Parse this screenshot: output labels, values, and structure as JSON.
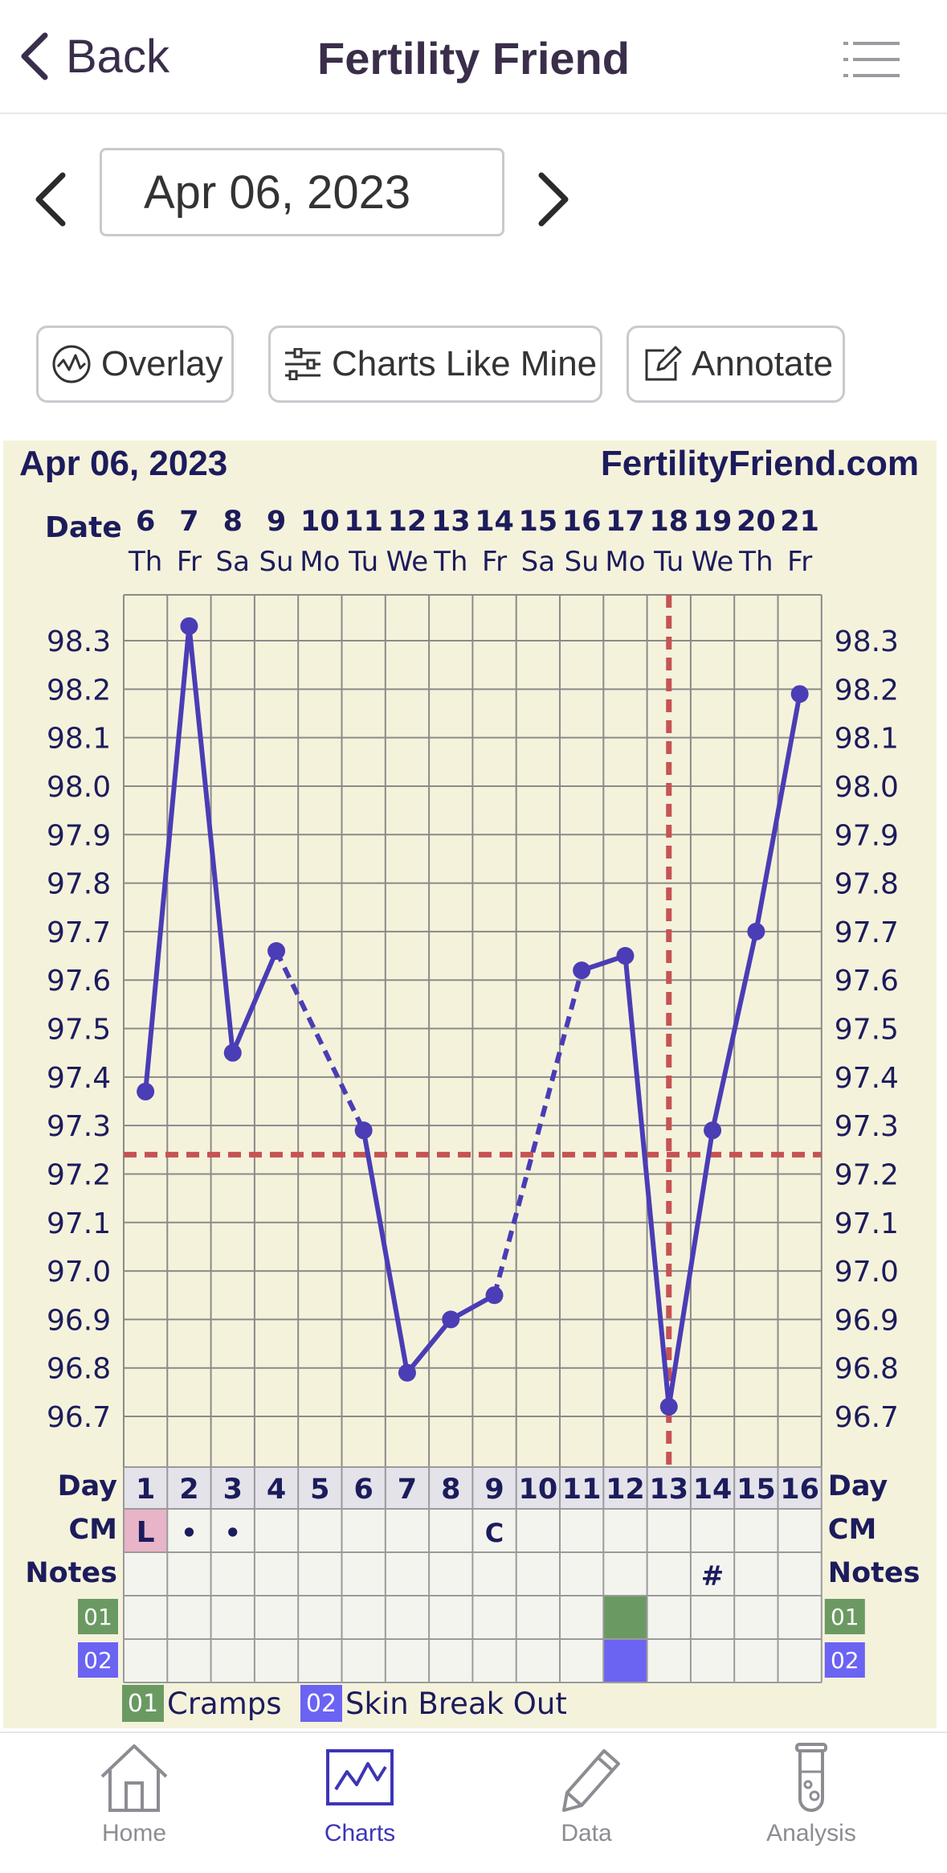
{
  "header": {
    "back_label": "Back",
    "title": "Fertility Friend"
  },
  "date_nav": {
    "date": "Apr 06, 2023"
  },
  "actions": {
    "overlay": "Overlay",
    "charts_like_mine": "Charts Like Mine",
    "annotate": "Annotate"
  },
  "chart_header": {
    "date": "Apr 06, 2023",
    "site": "FertilityFriend.com"
  },
  "chart_data": {
    "type": "line",
    "row_labels": {
      "date": "Date",
      "day": "Day",
      "cm": "CM",
      "notes": "Notes"
    },
    "dates": [
      "6",
      "7",
      "8",
      "9",
      "10",
      "11",
      "12",
      "13",
      "14",
      "15",
      "16",
      "17",
      "18",
      "19",
      "20",
      "21"
    ],
    "weekdays": [
      "Th",
      "Fr",
      "Sa",
      "Su",
      "Mo",
      "Tu",
      "We",
      "Th",
      "Fr",
      "Sa",
      "Su",
      "Mo",
      "Tu",
      "We",
      "Th",
      "Fr"
    ],
    "cycle_days": [
      "1",
      "2",
      "3",
      "4",
      "5",
      "6",
      "7",
      "8",
      "9",
      "10",
      "11",
      "12",
      "13",
      "14",
      "15",
      "16"
    ],
    "y_ticks": [
      "98.3",
      "98.2",
      "98.1",
      "98.0",
      "97.9",
      "97.8",
      "97.7",
      "97.6",
      "97.5",
      "97.4",
      "97.3",
      "97.2",
      "97.1",
      "97.0",
      "96.9",
      "96.8",
      "96.7"
    ],
    "ylim": [
      96.65,
      98.35
    ],
    "temperatures": [
      97.37,
      98.33,
      97.45,
      97.66,
      null,
      97.29,
      96.79,
      96.9,
      96.95,
      null,
      97.62,
      97.65,
      96.72,
      97.29,
      97.7,
      98.19
    ],
    "coverline": 97.24,
    "ovulation_day": 13,
    "cm": [
      "L",
      "•",
      "•",
      "",
      "",
      "",
      "",
      "",
      "C",
      "",
      "",
      "",
      "",
      "",
      "",
      ""
    ],
    "notes": [
      "",
      "",
      "",
      "",
      "",
      "",
      "",
      "",
      "",
      "",
      "",
      "",
      "",
      "#",
      "",
      ""
    ],
    "symptoms": [
      {
        "code": "01",
        "name": "Cramps",
        "color": "#6a9a62",
        "days": [
          12
        ]
      },
      {
        "code": "02",
        "name": "Skin Break Out",
        "color": "#6b63f2",
        "days": [
          12
        ]
      }
    ],
    "line_color": "#4a3db5",
    "cover_color": "#c65353",
    "cm_highlight_color": "#e8b4c8"
  },
  "tabs": {
    "home": "Home",
    "charts": "Charts",
    "data": "Data",
    "analysis": "Analysis"
  }
}
